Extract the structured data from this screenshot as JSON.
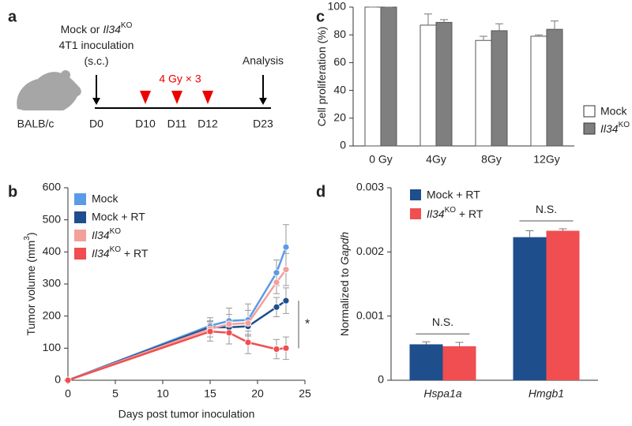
{
  "timeline": {
    "panel": "a",
    "start_label": [
      [
        {
          "text": "Mock or "
        },
        {
          "text": "Il34",
          "italic": true
        },
        {
          "text": "KO",
          "sup": true
        }
      ],
      [
        {
          "text": "4T1 inoculation"
        }
      ],
      [
        {
          "text": "(s.c.)"
        }
      ]
    ],
    "end_label": "Analysis",
    "treatment": "4 Gy × 3",
    "strain": "BALB/c",
    "days": [
      "D0",
      "D10",
      "D11",
      "D12",
      "D23"
    ]
  },
  "chart_data": [
    {
      "type": "line",
      "panel": "b",
      "x_label": "Days post tumor inoculation",
      "y_label": [
        {
          "text": "Tumor volume (mm"
        },
        {
          "text": "3",
          "sup": true
        },
        {
          "text": ")"
        }
      ],
      "x": [
        0,
        15,
        17,
        19,
        22,
        23
      ],
      "xlim": [
        0,
        25
      ],
      "xticks": [
        0,
        5,
        10,
        15,
        20,
        25
      ],
      "ylim": [
        0,
        600
      ],
      "yticks": [
        0,
        100,
        200,
        300,
        400,
        500,
        600
      ],
      "significance": "*",
      "series": [
        {
          "name": "Mock",
          "color": "#5b9be6",
          "values": [
            0,
            170,
            185,
            188,
            335,
            415
          ],
          "errors": [
            0,
            25,
            40,
            50,
            40,
            70
          ]
        },
        {
          "name": "Mock + RT",
          "color": "#1f4e8c",
          "values": [
            0,
            165,
            165,
            168,
            228,
            248
          ],
          "errors": [
            0,
            20,
            20,
            25,
            30,
            40
          ]
        },
        {
          "name": [
            {
              "text": "Il34",
              "italic": true
            },
            {
              "text": "KO",
              "sup": true
            }
          ],
          "color": "#f4a09a",
          "values": [
            0,
            160,
            175,
            178,
            305,
            345
          ],
          "errors": [
            0,
            25,
            30,
            40,
            35,
            50
          ]
        },
        {
          "name": [
            {
              "text": "Il34",
              "italic": true
            },
            {
              "text": "KO",
              "sup": true
            },
            {
              "text": " + RT"
            }
          ],
          "color": "#f04e50",
          "values": [
            0,
            152,
            148,
            118,
            97,
            100
          ],
          "errors": [
            0,
            30,
            35,
            35,
            30,
            35
          ]
        }
      ]
    },
    {
      "type": "bar",
      "panel": "c",
      "y_label": [
        {
          "text": "Cell proliferation (%)"
        }
      ],
      "categories": [
        "0 Gy",
        "4Gy",
        "8Gy",
        "12Gy"
      ],
      "ylim": [
        0,
        100
      ],
      "yticks": [
        0,
        20,
        40,
        60,
        80,
        100
      ],
      "legend": "right",
      "series": [
        {
          "name": "Mock",
          "color": "#ffffff",
          "values": [
            100,
            87,
            76,
            79
          ],
          "errors": [
            0,
            8,
            3,
            1
          ]
        },
        {
          "name": [
            {
              "text": "Il34",
              "italic": true
            },
            {
              "text": "KO",
              "sup": true
            }
          ],
          "color": "#7f7f7f",
          "values": [
            100,
            89,
            83,
            84
          ],
          "errors": [
            0,
            2,
            5,
            6
          ]
        }
      ]
    },
    {
      "type": "bar",
      "panel": "d",
      "y_label": [
        {
          "text": "Normalized to "
        },
        {
          "text": "Gapdh",
          "italic": true
        }
      ],
      "categories": [
        "Hspa1a",
        "Hmgb1"
      ],
      "category_italic": true,
      "category_annotations": [
        "N.S.",
        "N.S."
      ],
      "ylim": [
        0,
        0.003
      ],
      "yticks": [
        0,
        0.001,
        0.002,
        0.003
      ],
      "legend": "upper left",
      "series": [
        {
          "name": "Mock + RT",
          "color": "#1f4e8c",
          "values": [
            0.00056,
            0.00223
          ],
          "errors": [
            4e-05,
            0.0001
          ]
        },
        {
          "name": [
            {
              "text": "Il34",
              "italic": true
            },
            {
              "text": "KO",
              "sup": true
            },
            {
              "text": " + RT"
            }
          ],
          "color": "#f04e50",
          "values": [
            0.00053,
            0.00233
          ],
          "errors": [
            6e-05,
            3e-05
          ]
        }
      ]
    }
  ]
}
